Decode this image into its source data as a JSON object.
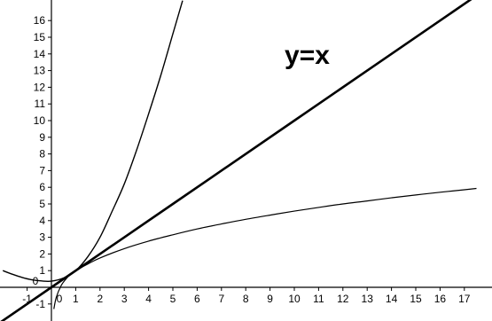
{
  "chart_data": {
    "type": "line",
    "title": "",
    "xlabel": "",
    "ylabel": "",
    "xlim": [
      -2.2,
      17.5
    ],
    "ylim": [
      -1.3,
      17.2
    ],
    "grid": false,
    "x_ticks": [
      "-1",
      "0",
      "1",
      "2",
      "3",
      "4",
      "5",
      "6",
      "7",
      "8",
      "9",
      "10",
      "11",
      "12",
      "13",
      "14",
      "15",
      "16",
      "17"
    ],
    "y_ticks": [
      "-1",
      "0",
      "1",
      "2",
      "3",
      "4",
      "5",
      "6",
      "7",
      "8",
      "9",
      "10",
      "11",
      "12",
      "13",
      "14",
      "15",
      "16"
    ],
    "series": [
      {
        "color": "#000000",
        "points": [
          [
            -2.0,
            1.0
          ],
          [
            -1.6,
            0.78
          ],
          [
            -1.2,
            0.59
          ],
          [
            -0.8,
            0.45
          ],
          [
            -0.4,
            0.38
          ],
          [
            0.0,
            0.37
          ],
          [
            0.5,
            0.56
          ],
          [
            1.0,
            1.0
          ],
          [
            1.5,
            1.84
          ],
          [
            2.0,
            3.0
          ],
          [
            2.5,
            4.56
          ],
          [
            3.0,
            6.2
          ],
          [
            3.5,
            8.2
          ],
          [
            4.0,
            10.4
          ],
          [
            4.5,
            12.7
          ],
          [
            5.0,
            15.2
          ],
          [
            5.4,
            17.2
          ]
        ]
      },
      {
        "color": "#000000",
        "points": [
          [
            -2.2,
            -2.2
          ],
          [
            0,
            0
          ],
          [
            5,
            5
          ],
          [
            10,
            10
          ],
          [
            17.5,
            17.5
          ]
        ]
      },
      {
        "color": "#000000",
        "points": [
          [
            0.1,
            -1.3
          ],
          [
            0.2,
            -0.6
          ],
          [
            0.4,
            0.1
          ],
          [
            0.6,
            0.5
          ],
          [
            0.8,
            0.8
          ],
          [
            1.0,
            1.0
          ],
          [
            1.5,
            1.4
          ],
          [
            2.0,
            1.76
          ],
          [
            3.0,
            2.32
          ],
          [
            4.0,
            2.77
          ],
          [
            5.0,
            3.15
          ],
          [
            6.0,
            3.5
          ],
          [
            7.0,
            3.8
          ],
          [
            8.0,
            4.08
          ],
          [
            9.0,
            4.33
          ],
          [
            10.0,
            4.57
          ],
          [
            11.0,
            4.79
          ],
          [
            12.0,
            5.0
          ],
          [
            13.0,
            5.18
          ],
          [
            14.0,
            5.37
          ],
          [
            15.0,
            5.54
          ],
          [
            16.0,
            5.7
          ],
          [
            17.0,
            5.85
          ],
          [
            17.5,
            5.93
          ]
        ]
      }
    ],
    "annotations": [
      {
        "text": "y=x",
        "x": 9.6,
        "y": 13.4
      }
    ]
  }
}
